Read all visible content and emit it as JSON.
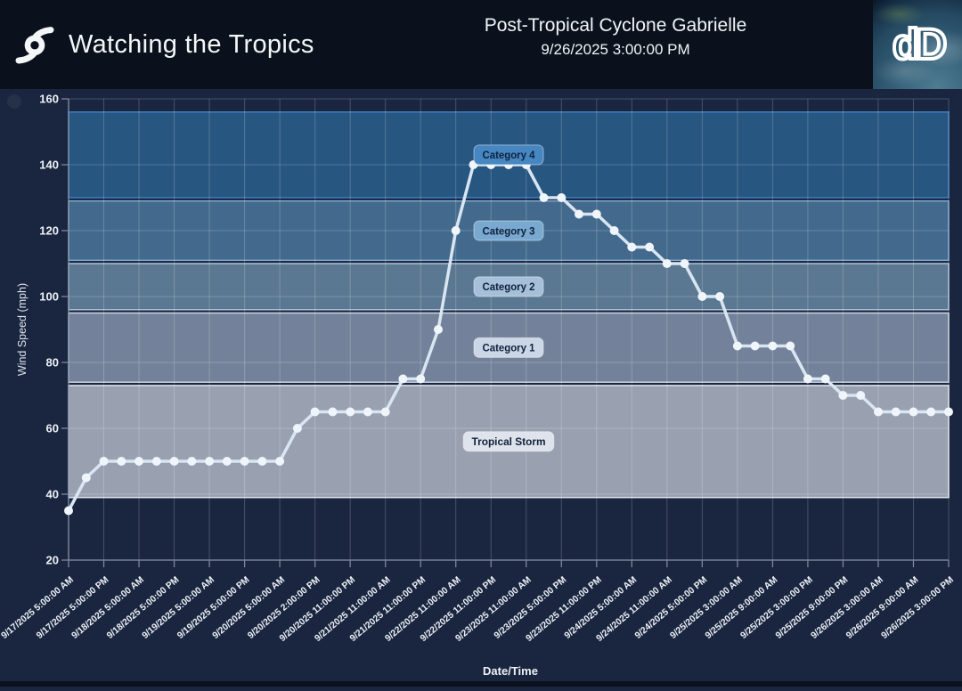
{
  "header": {
    "app_title": "Watching the Tropics",
    "storm_title": "Post-Tropical Cyclone Gabrielle",
    "advisory_timestamp": "9/26/2025 3:00:00 PM",
    "logo_text": "dD"
  },
  "colors": {
    "header_bg": "#0a111c",
    "page_bg": "#1a2640",
    "axis": "#8792a5",
    "tick": "#7d879a",
    "grid": "rgba(255,255,255,0.20)",
    "text": "#edf1f6",
    "badge_text": "#10213a",
    "line": "#d9e6f2",
    "marker": "#eff5fb"
  },
  "chart_data": {
    "type": "line",
    "title": "",
    "xlabel": "Date/Time",
    "ylabel": "Wind Speed (mph)",
    "ylim": [
      20,
      160
    ],
    "y_ticks": [
      20,
      40,
      60,
      80,
      100,
      120,
      140,
      160
    ],
    "grid": true,
    "legend": false,
    "x_labels_every_n_points": 2,
    "x": [
      "9/17/2025 5:00:00 AM",
      "9/17/2025 5:00:00 PM",
      "9/18/2025 5:00:00 AM",
      "9/18/2025 5:00:00 PM",
      "9/19/2025 5:00:00 AM",
      "9/19/2025 5:00:00 PM",
      "9/20/2025 5:00:00 AM",
      "9/20/2025 2:00:00 PM",
      "9/20/2025 11:00:00 PM",
      "9/21/2025 11:00:00 AM",
      "9/21/2025 11:00:00 PM",
      "9/22/2025 11:00:00 AM",
      "9/22/2025 11:00:00 PM",
      "9/23/2025 11:00:00 AM",
      "9/23/2025 5:00:00 PM",
      "9/23/2025 11:00:00 PM",
      "9/24/2025 5:00:00 AM",
      "9/24/2025 11:00:00 AM",
      "9/24/2025 5:00:00 PM",
      "9/25/2025 3:00:00 AM",
      "9/25/2025 9:00:00 AM",
      "9/25/2025 3:00:00 PM",
      "9/25/2025 9:00:00 PM",
      "9/26/2025 3:00:00 AM",
      "9/26/2025 9:00:00 AM",
      "9/26/2025 3:00:00 PM"
    ],
    "series": [
      {
        "name": "Wind Speed (mph)",
        "values": [
          35,
          45,
          50,
          50,
          50,
          50,
          50,
          50,
          50,
          50,
          50,
          50,
          50,
          60,
          65,
          65,
          65,
          65,
          65,
          75,
          75,
          90,
          120,
          140,
          140,
          140,
          140,
          130,
          130,
          125,
          125,
          120,
          115,
          115,
          110,
          110,
          100,
          100,
          85,
          85,
          85,
          85,
          75,
          75,
          70,
          70,
          65,
          65,
          65,
          65,
          65
        ]
      }
    ],
    "bands": [
      {
        "label": "Tropical Storm",
        "range_mph": [
          39,
          73
        ],
        "fill": "#99a1b1",
        "edge": "#e2e7ee",
        "badge_fill": "#dfe3ec"
      },
      {
        "label": "Category 1",
        "range_mph": [
          74,
          95
        ],
        "fill": "#73829a",
        "edge": "#ccd6e2",
        "badge_fill": "#cbd7e6"
      },
      {
        "label": "Category 2",
        "range_mph": [
          96,
          110
        ],
        "fill": "#5b7892",
        "edge": "#aec4d8",
        "badge_fill": "#a6c0da"
      },
      {
        "label": "Category 3",
        "range_mph": [
          111,
          129
        ],
        "fill": "#436a8d",
        "edge": "#7fa9cc",
        "badge_fill": "#79a8d0"
      },
      {
        "label": "Category 4",
        "range_mph": [
          130,
          156
        ],
        "fill": "#275681",
        "edge": "#3f7fc0",
        "badge_fill": "#4687c2"
      }
    ]
  }
}
